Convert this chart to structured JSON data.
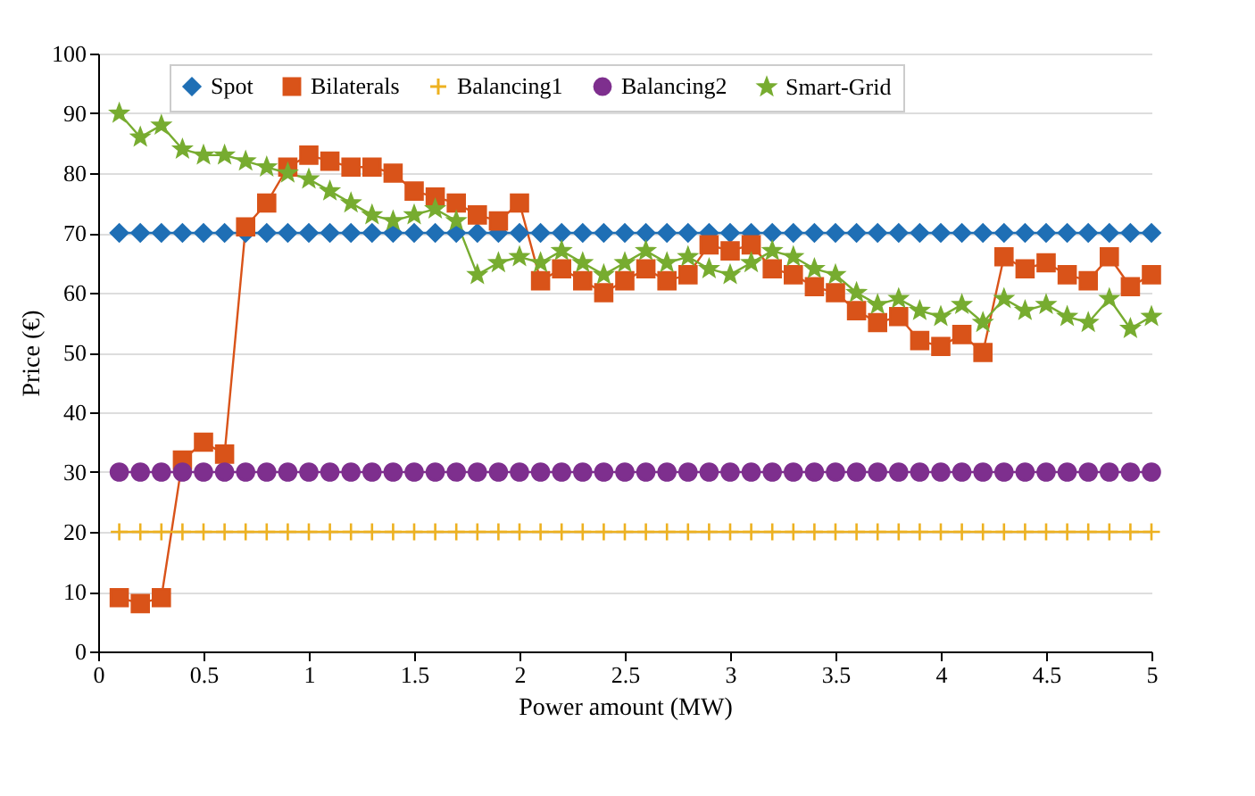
{
  "chart_data": {
    "type": "line",
    "xlabel": "Power amount (MW)",
    "ylabel": "Price (€)",
    "x": [
      0.1,
      0.2,
      0.3,
      0.4,
      0.5,
      0.6,
      0.7,
      0.8,
      0.9,
      1.0,
      1.1,
      1.2,
      1.3,
      1.4,
      1.5,
      1.6,
      1.7,
      1.8,
      1.9,
      2.0,
      2.1,
      2.2,
      2.3,
      2.4,
      2.5,
      2.6,
      2.7,
      2.8,
      2.9,
      3.0,
      3.1,
      3.2,
      3.3,
      3.4,
      3.5,
      3.6,
      3.7,
      3.8,
      3.9,
      4.0,
      4.1,
      4.2,
      4.3,
      4.4,
      4.5,
      4.6,
      4.7,
      4.8,
      4.9,
      5.0
    ],
    "series": [
      {
        "name": "Spot",
        "color": "#1f6fb5",
        "marker": "diamond",
        "values": [
          70,
          70,
          70,
          70,
          70,
          70,
          70,
          70,
          70,
          70,
          70,
          70,
          70,
          70,
          70,
          70,
          70,
          70,
          70,
          70,
          70,
          70,
          70,
          70,
          70,
          70,
          70,
          70,
          70,
          70,
          70,
          70,
          70,
          70,
          70,
          70,
          70,
          70,
          70,
          70,
          70,
          70,
          70,
          70,
          70,
          70,
          70,
          70,
          70,
          70
        ]
      },
      {
        "name": "Bilaterals",
        "color": "#d95319",
        "marker": "square",
        "values": [
          9,
          8,
          9,
          32,
          35,
          33,
          71,
          75,
          81,
          83,
          82,
          81,
          81,
          80,
          77,
          76,
          75,
          73,
          72,
          75,
          62,
          64,
          62,
          60,
          62,
          64,
          62,
          63,
          68,
          67,
          68,
          64,
          63,
          61,
          60,
          57,
          55,
          56,
          52,
          51,
          53,
          50,
          66,
          64,
          65,
          63,
          62,
          66,
          61,
          63
        ]
      },
      {
        "name": "Balancing1",
        "color": "#edb120",
        "marker": "cross",
        "values": [
          20,
          20,
          20,
          20,
          20,
          20,
          20,
          20,
          20,
          20,
          20,
          20,
          20,
          20,
          20,
          20,
          20,
          20,
          20,
          20,
          20,
          20,
          20,
          20,
          20,
          20,
          20,
          20,
          20,
          20,
          20,
          20,
          20,
          20,
          20,
          20,
          20,
          20,
          20,
          20,
          20,
          20,
          20,
          20,
          20,
          20,
          20,
          20,
          20,
          20
        ]
      },
      {
        "name": "Balancing2",
        "color": "#7e2f8e",
        "marker": "circle",
        "values": [
          30,
          30,
          30,
          30,
          30,
          30,
          30,
          30,
          30,
          30,
          30,
          30,
          30,
          30,
          30,
          30,
          30,
          30,
          30,
          30,
          30,
          30,
          30,
          30,
          30,
          30,
          30,
          30,
          30,
          30,
          30,
          30,
          30,
          30,
          30,
          30,
          30,
          30,
          30,
          30,
          30,
          30,
          30,
          30,
          30,
          30,
          30,
          30,
          30,
          30
        ]
      },
      {
        "name": "Smart-Grid",
        "color": "#77ac30",
        "marker": "star",
        "values": [
          90,
          86,
          88,
          84,
          83,
          83,
          82,
          81,
          80,
          79,
          77,
          75,
          73,
          72,
          73,
          74,
          72,
          63,
          65,
          66,
          65,
          67,
          65,
          63,
          65,
          67,
          65,
          66,
          64,
          63,
          65,
          67,
          66,
          64,
          63,
          60,
          58,
          59,
          57,
          56,
          58,
          55,
          59,
          57,
          58,
          56,
          55,
          59,
          54,
          56
        ]
      }
    ],
    "xlim": [
      0,
      5
    ],
    "xticks": [
      0,
      0.5,
      1,
      1.5,
      2,
      2.5,
      3,
      3.5,
      4,
      4.5,
      5
    ],
    "ylim": [
      0,
      100
    ],
    "yticks": [
      0,
      10,
      20,
      30,
      40,
      50,
      60,
      70,
      80,
      90,
      100
    ],
    "grid": "y",
    "legend": "top",
    "line_style": "solid"
  }
}
